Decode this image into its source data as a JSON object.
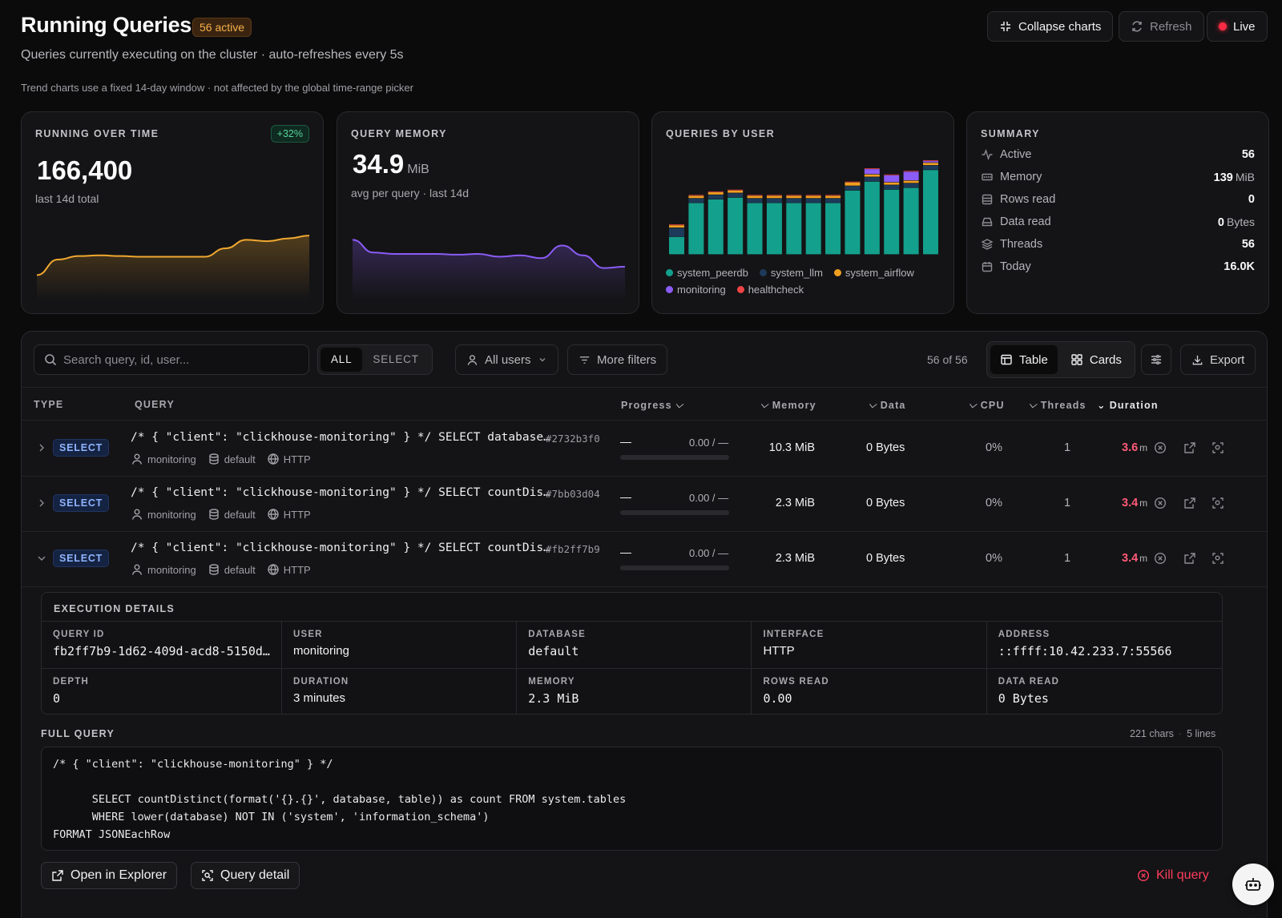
{
  "header": {
    "title": "Running Queries",
    "active_badge": "56 active",
    "subtitle": "Queries currently executing on the cluster · auto-refreshes every 5s",
    "hint": "Trend charts use a fixed 14-day window · not affected by the global time-range picker",
    "collapse_label": "Collapse charts",
    "refresh_label": "Refresh",
    "live_label": "Live"
  },
  "cards": {
    "running": {
      "label": "RUNNING OVER TIME",
      "delta": "+32%",
      "value": "166,400",
      "caption": "last 14d total"
    },
    "memory": {
      "label": "QUERY MEMORY",
      "value": "34.9",
      "unit": "MiB",
      "caption": "avg per query · last 14d"
    },
    "by_user": {
      "label": "QUERIES BY USER",
      "legend": [
        {
          "name": "system_peerdb",
          "color": "#13a08c"
        },
        {
          "name": "system_llm",
          "color": "#1d3a5a"
        },
        {
          "name": "system_airflow",
          "color": "#f0a020"
        },
        {
          "name": "monitoring",
          "color": "#8b5cf6"
        },
        {
          "name": "healthcheck",
          "color": "#ef4444"
        }
      ]
    },
    "summary": {
      "label": "SUMMARY",
      "rows": [
        {
          "icon": "activity-icon",
          "label": "Active",
          "value": "56",
          "unit": ""
        },
        {
          "icon": "memory-icon",
          "label": "Memory",
          "value": "139",
          "unit": "MiB"
        },
        {
          "icon": "rows-icon",
          "label": "Rows read",
          "value": "0",
          "unit": ""
        },
        {
          "icon": "drive-icon",
          "label": "Data read",
          "value": "0",
          "unit": "Bytes"
        },
        {
          "icon": "layers-icon",
          "label": "Threads",
          "value": "56",
          "unit": ""
        },
        {
          "icon": "calendar-icon",
          "label": "Today",
          "value": "16.0K",
          "unit": ""
        }
      ]
    }
  },
  "chart_data": [
    {
      "type": "area",
      "title": "RUNNING OVER TIME",
      "x": [
        1,
        2,
        3,
        4,
        5,
        6,
        7,
        8,
        9,
        10,
        11,
        12,
        13,
        14
      ],
      "values": [
        20,
        42,
        47,
        48,
        47,
        46,
        46,
        46,
        46,
        58,
        70,
        68,
        72,
        76
      ],
      "color": "#f0a830"
    },
    {
      "type": "area",
      "title": "QUERY MEMORY",
      "x": [
        1,
        2,
        3,
        4,
        5,
        6,
        7,
        8,
        9,
        10,
        11,
        12,
        13,
        14
      ],
      "values": [
        70,
        52,
        50,
        50,
        50,
        49,
        50,
        46,
        48,
        44,
        62,
        48,
        30,
        32
      ],
      "color": "#8b5cf6"
    },
    {
      "type": "bar",
      "title": "QUERIES BY USER",
      "stacked": true,
      "categories": [
        "1",
        "2",
        "3",
        "4",
        "5",
        "6",
        "7",
        "8",
        "9",
        "10",
        "11",
        "12",
        "13",
        "14"
      ],
      "series": [
        {
          "name": "system_peerdb",
          "values": [
            20,
            58,
            62,
            64,
            58,
            58,
            58,
            58,
            58,
            72,
            82,
            73,
            75,
            95
          ]
        },
        {
          "name": "system_llm",
          "values": [
            10,
            5,
            5,
            5,
            5,
            5,
            5,
            5,
            5,
            5,
            5,
            5,
            5,
            5
          ]
        },
        {
          "name": "system_airflow",
          "values": [
            3,
            3,
            3,
            3,
            3,
            3,
            3,
            3,
            3,
            4,
            3,
            3,
            3,
            3
          ]
        },
        {
          "name": "monitoring",
          "values": [
            0,
            0,
            0,
            0,
            0,
            0,
            0,
            0,
            0,
            0,
            6,
            8,
            10,
            2
          ]
        },
        {
          "name": "healthcheck",
          "values": [
            1,
            1,
            1,
            1,
            1,
            1,
            1,
            1,
            1,
            1,
            1,
            1,
            1,
            1
          ]
        }
      ]
    }
  ],
  "toolbar": {
    "search_placeholder": "Search query, id, user...",
    "seg_all": "ALL",
    "seg_select": "SELECT",
    "users_filter": "All users",
    "more_filters": "More filters",
    "count": "56 of 56",
    "view_table": "Table",
    "view_cards": "Cards",
    "export": "Export"
  },
  "table": {
    "headers": {
      "type": "TYPE",
      "query": "QUERY",
      "progress": "Progress",
      "memory": "Memory",
      "data": "Data",
      "cpu": "CPU",
      "threads": "Threads",
      "duration": "Duration"
    },
    "rows": [
      {
        "type": "SELECT",
        "query": "/* { \"client\": \"clickhouse-monitoring\" } */ SELECT database…",
        "hash": "#2732b3f0",
        "user": "monitoring",
        "db": "default",
        "iface": "HTTP",
        "pdash": "—",
        "progress": "0.00 / —",
        "progress_fraction": 0,
        "memory": "10.3 MiB",
        "data": "0 Bytes",
        "cpu": "0%",
        "threads": "1",
        "duration": "3.6",
        "duration_unit": "m",
        "expanded": false
      },
      {
        "type": "SELECT",
        "query": "/* { \"client\": \"clickhouse-monitoring\" } */ SELECT countDis…",
        "hash": "#7bb03d04",
        "user": "monitoring",
        "db": "default",
        "iface": "HTTP",
        "pdash": "—",
        "progress": "0.00 / —",
        "progress_fraction": 0,
        "memory": "2.3 MiB",
        "data": "0 Bytes",
        "cpu": "0%",
        "threads": "1",
        "duration": "3.4",
        "duration_unit": "m",
        "expanded": false
      },
      {
        "type": "SELECT",
        "query": "/* { \"client\": \"clickhouse-monitoring\" } */ SELECT countDis…",
        "hash": "#fb2ff7b9",
        "user": "monitoring",
        "db": "default",
        "iface": "HTTP",
        "pdash": "—",
        "progress": "0.00 / —",
        "progress_fraction": 0,
        "memory": "2.3 MiB",
        "data": "0 Bytes",
        "cpu": "0%",
        "threads": "1",
        "duration": "3.4",
        "duration_unit": "m",
        "expanded": true
      }
    ]
  },
  "details": {
    "title": "EXECUTION DETAILS",
    "fields": [
      {
        "k": "QUERY ID",
        "v": "fb2ff7b9-1d62-409d-acd8-5150d…",
        "mono": true
      },
      {
        "k": "USER",
        "v": "monitoring",
        "mono": false
      },
      {
        "k": "DATABASE",
        "v": "default",
        "mono": true
      },
      {
        "k": "INTERFACE",
        "v": "HTTP",
        "mono": false
      },
      {
        "k": "ADDRESS",
        "v": "::ffff:10.42.233.7:55566",
        "mono": true
      },
      {
        "k": "DEPTH",
        "v": "0",
        "mono": true
      },
      {
        "k": "DURATION",
        "v": "3 minutes",
        "mono": false
      },
      {
        "k": "MEMORY",
        "v": "2.3 MiB",
        "mono": true
      },
      {
        "k": "ROWS READ",
        "v": "0.00",
        "mono": true
      },
      {
        "k": "DATA READ",
        "v": "0 Bytes",
        "mono": true
      }
    ],
    "full_query_label": "FULL QUERY",
    "chars": "221 chars",
    "lines": "5 lines",
    "full_query": "/* { \"client\": \"clickhouse-monitoring\" } */\n\n      SELECT countDistinct(format('{}.{}', database, table)) as count FROM system.tables\n      WHERE lower(database) NOT IN ('system', 'information_schema')\nFORMAT JSONEachRow",
    "open_explorer": "Open in Explorer",
    "query_detail": "Query detail",
    "kill_query": "Kill query"
  }
}
